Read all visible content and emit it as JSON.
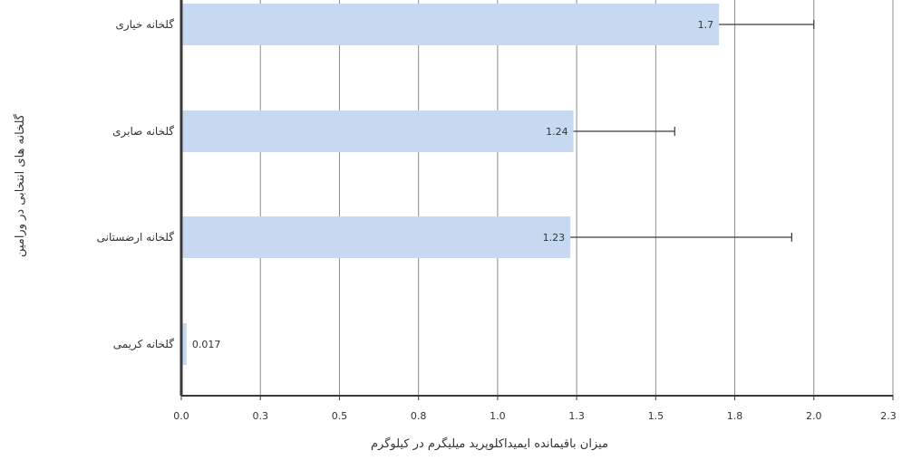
{
  "chart_data": {
    "type": "bar",
    "orientation": "horizontal",
    "categories": [
      "گلخانه خیاری",
      "گلخانه صابری",
      "گلخانه ارضستانی",
      "گلخانه کریمی"
    ],
    "values": [
      1.7,
      1.24,
      1.23,
      0.017
    ],
    "data_labels": [
      "1.7",
      "1.24",
      "1.23",
      "0.017"
    ],
    "error_plus": [
      0.3,
      0.32,
      0.7,
      0
    ],
    "xlabel": "میزان باقیمانده ایمیداکلوپرید میلیگرم در کیلوگرم",
    "ylabel": "گلخانه های انتخابی در ورامین",
    "xlim": [
      0,
      2.25
    ],
    "xticks": [
      "0.0",
      "0.3",
      "0.5",
      "0.8",
      "1.0",
      "1.3",
      "1.5",
      "1.8",
      "2.0",
      "2.3"
    ],
    "xtick_values": [
      0,
      0.25,
      0.5,
      0.75,
      1.0,
      1.25,
      1.5,
      1.75,
      2.0,
      2.25
    ],
    "grid": "vertical",
    "colors": {
      "bar": "#c6d9f1",
      "grid": "#8c8c8c",
      "axis": "#3a3a3a",
      "error": "#3a3a3a"
    }
  }
}
